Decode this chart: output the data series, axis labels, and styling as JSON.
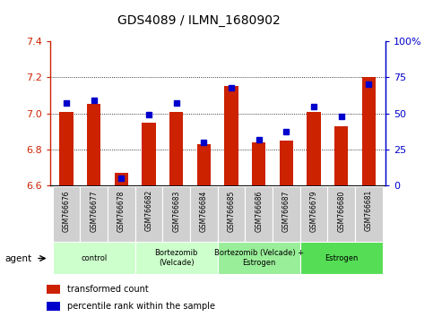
{
  "title": "GDS4089 / ILMN_1680902",
  "samples": [
    "GSM766676",
    "GSM766677",
    "GSM766678",
    "GSM766682",
    "GSM766683",
    "GSM766684",
    "GSM766685",
    "GSM766686",
    "GSM766687",
    "GSM766679",
    "GSM766680",
    "GSM766681"
  ],
  "red_values": [
    7.01,
    7.05,
    6.67,
    6.95,
    7.01,
    6.83,
    7.15,
    6.84,
    6.85,
    7.01,
    6.93,
    7.2
  ],
  "blue_values": [
    57,
    59,
    5,
    49,
    57,
    30,
    68,
    32,
    37,
    55,
    48,
    70
  ],
  "y_min": 6.6,
  "y_max": 7.4,
  "y_ticks": [
    6.6,
    6.8,
    7.0,
    7.2,
    7.4
  ],
  "y2_ticks": [
    0,
    25,
    50,
    75,
    100
  ],
  "y2_labels": [
    "0",
    "25",
    "50",
    "75",
    "100%"
  ],
  "left_axis_color": "#cc2200",
  "right_axis_color": "#0000cc",
  "bar_color": "#cc2200",
  "dot_color": "#0000cc",
  "groups": [
    {
      "label": "control",
      "start": 0,
      "end": 3,
      "color": "#ccffcc"
    },
    {
      "label": "Bortezomib\n(Velcade)",
      "start": 3,
      "end": 6,
      "color": "#ccffcc"
    },
    {
      "label": "Bortezomib (Velcade) +\nEstrogen",
      "start": 6,
      "end": 9,
      "color": "#99ee99"
    },
    {
      "label": "Estrogen",
      "start": 9,
      "end": 12,
      "color": "#55dd55"
    }
  ],
  "legend_items": [
    {
      "label": "transformed count",
      "color": "#cc2200"
    },
    {
      "label": "percentile rank within the sample",
      "color": "#0000cc"
    }
  ],
  "bar_width": 0.5
}
